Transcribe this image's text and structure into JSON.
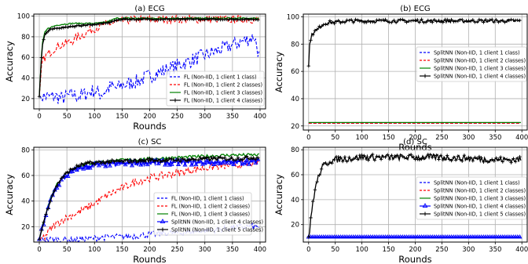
{
  "chart_data": [
    {
      "type": "line",
      "title": "(a) ECG",
      "xlabel": "Rounds",
      "ylabel": "Accuracy",
      "xlim": [
        -10,
        410
      ],
      "ylim": [
        10,
        102
      ],
      "xticks": [
        0,
        50,
        100,
        150,
        200,
        250,
        300,
        350,
        400
      ],
      "yticks": [
        20,
        40,
        60,
        80,
        100
      ],
      "grid": true,
      "legend_position": "lower-right",
      "series": [
        {
          "name": "FL (Non-IID, 1 client 1 class)",
          "color": "#0000ff",
          "dash": "dashed",
          "marker": "none",
          "x": [
            0,
            10,
            20,
            30,
            40,
            50,
            60,
            70,
            80,
            90,
            100,
            110,
            120,
            130,
            140,
            150,
            160,
            170,
            180,
            190,
            200,
            210,
            220,
            230,
            240,
            250,
            260,
            270,
            280,
            290,
            300,
            310,
            320,
            330,
            340,
            350,
            360,
            370,
            380,
            390,
            398
          ],
          "y": [
            22,
            22,
            22,
            22,
            20,
            22,
            24,
            22,
            24,
            26,
            28,
            24,
            27,
            32,
            30,
            33,
            34,
            36,
            37,
            40,
            42,
            44,
            46,
            48,
            50,
            52,
            54,
            56,
            58,
            60,
            62,
            64,
            66,
            68,
            70,
            72,
            74,
            76,
            78,
            80,
            62
          ]
        },
        {
          "name": "FL (Non-IID, 1 client 2 classes)",
          "color": "#ff0000",
          "dash": "dashed",
          "marker": "none",
          "x": [
            0,
            5,
            10,
            15,
            20,
            25,
            30,
            40,
            50,
            60,
            70,
            80,
            90,
            100,
            110,
            120,
            130,
            140,
            150,
            160,
            180,
            200,
            250,
            300,
            350,
            398
          ],
          "y": [
            22,
            55,
            60,
            63,
            65,
            67,
            70,
            72,
            74,
            76,
            80,
            82,
            86,
            88,
            90,
            92,
            93,
            94,
            95,
            96,
            97,
            97,
            97,
            97,
            97,
            97
          ]
        },
        {
          "name": "FL (Non-IID, 1 client 3 classes)",
          "color": "#008000",
          "dash": "solid",
          "marker": "none",
          "x": [
            0,
            5,
            10,
            15,
            20,
            30,
            40,
            60,
            80,
            100,
            120,
            140,
            150,
            200,
            250,
            300,
            350,
            398
          ],
          "y": [
            22,
            72,
            84,
            88,
            89,
            91,
            92,
            93,
            93,
            93,
            94,
            98,
            98,
            98,
            98,
            98,
            98,
            98
          ]
        },
        {
          "name": "FL (Non-IID, 1 client 4 classes)",
          "color": "#000000",
          "dash": "solid",
          "marker": "plus",
          "x": [
            0,
            5,
            10,
            15,
            20,
            30,
            40,
            60,
            80,
            100,
            120,
            140,
            150,
            200,
            250,
            300,
            350,
            398
          ],
          "y": [
            22,
            70,
            82,
            85,
            87,
            88,
            89,
            90,
            91,
            92,
            93,
            96,
            97,
            97,
            97,
            97,
            97,
            97
          ]
        }
      ]
    },
    {
      "type": "line",
      "title": "(b) ECG",
      "xlabel": "Rounds",
      "ylabel": "Accuracy",
      "xlim": [
        -10,
        410
      ],
      "ylim": [
        17,
        102
      ],
      "xticks": [
        0,
        50,
        100,
        150,
        200,
        250,
        300,
        350,
        400
      ],
      "yticks": [
        20,
        40,
        60,
        80,
        100
      ],
      "grid": true,
      "legend_position": "center-right",
      "series": [
        {
          "name": "SplitNN (Non-IID, 1 client 1 class)",
          "color": "#0000ff",
          "dash": "dashed",
          "marker": "none",
          "x": [
            0,
            398
          ],
          "y": [
            22,
            22
          ]
        },
        {
          "name": "SplitNN (Non-IID, 1 client 2 classes)",
          "color": "#ff0000",
          "dash": "dashed",
          "marker": "none",
          "x": [
            0,
            398
          ],
          "y": [
            22,
            22
          ]
        },
        {
          "name": "SplitNN (Non-IID, 1 client 3 classes)",
          "color": "#008000",
          "dash": "solid",
          "marker": "none",
          "x": [
            0,
            398
          ],
          "y": [
            22.5,
            22.5
          ]
        },
        {
          "name": "SplitNN (Non-IID, 1 client 4 classes)",
          "color": "#000000",
          "dash": "solid",
          "marker": "plus",
          "x": [
            0,
            2,
            5,
            10,
            15,
            20,
            25,
            30,
            40,
            50,
            75,
            100,
            150,
            200,
            250,
            300,
            350,
            398
          ],
          "y": [
            64,
            80,
            86,
            89,
            90,
            92,
            94,
            95,
            96,
            96,
            97,
            97,
            97,
            97,
            97,
            97,
            97,
            97
          ]
        }
      ]
    },
    {
      "type": "line",
      "title": "(c) SC",
      "xlabel": "Rounds",
      "ylabel": "Accuracy",
      "xlim": [
        -10,
        410
      ],
      "ylim": [
        8,
        82
      ],
      "xticks": [
        0,
        50,
        100,
        150,
        200,
        250,
        300,
        350,
        400
      ],
      "yticks": [
        20,
        40,
        60,
        80
      ],
      "grid": true,
      "legend_position": "lower-right",
      "series": [
        {
          "name": "FL (Non-IID, 1 client 1 class)",
          "color": "#0000ff",
          "dash": "dashed",
          "marker": "none",
          "x": [
            0,
            25,
            50,
            75,
            100,
            125,
            150,
            175,
            200,
            225,
            250,
            275,
            300,
            325,
            350,
            375,
            398
          ],
          "y": [
            10,
            10,
            10,
            10,
            11,
            12,
            12,
            13,
            14,
            15,
            15,
            16,
            17,
            18,
            19,
            20,
            20
          ]
        },
        {
          "name": "FL (Non-IID, 1 client 2 classes)",
          "color": "#ff0000",
          "dash": "dashed",
          "marker": "none",
          "x": [
            0,
            10,
            20,
            30,
            40,
            50,
            75,
            100,
            125,
            150,
            175,
            200,
            225,
            250,
            275,
            300,
            325,
            350,
            375,
            398
          ],
          "y": [
            10,
            12,
            18,
            22,
            25,
            27,
            32,
            38,
            45,
            50,
            55,
            58,
            60,
            62,
            64,
            66,
            67,
            68,
            69,
            70
          ]
        },
        {
          "name": "FL (Non-IID, 1 client 3 classes)",
          "color": "#008000",
          "dash": "solid",
          "marker": "none",
          "x": [
            0,
            10,
            20,
            30,
            40,
            50,
            60,
            75,
            100,
            150,
            200,
            250,
            300,
            350,
            398
          ],
          "y": [
            10,
            28,
            42,
            52,
            58,
            62,
            65,
            68,
            70,
            72,
            73,
            74,
            75,
            76,
            76
          ]
        },
        {
          "name": "SplitNN (Non-IID, 1 client 4 classes)",
          "color": "#0000ff",
          "dash": "solid",
          "marker": "triangle",
          "x": [
            0,
            10,
            20,
            30,
            40,
            50,
            60,
            75,
            100,
            150,
            200,
            250,
            300,
            350,
            398
          ],
          "y": [
            10,
            26,
            40,
            50,
            56,
            60,
            63,
            66,
            68,
            69,
            70,
            70,
            70,
            70,
            71
          ]
        },
        {
          "name": "SplitNN (Non-IID, 1 client 5 classes)",
          "color": "#000000",
          "dash": "solid",
          "marker": "plus",
          "x": [
            0,
            10,
            20,
            30,
            40,
            50,
            60,
            75,
            100,
            150,
            200,
            250,
            300,
            350,
            398
          ],
          "y": [
            10,
            27,
            41,
            51,
            58,
            62,
            65,
            68,
            70,
            71,
            72,
            72,
            73,
            73,
            74
          ]
        }
      ]
    },
    {
      "type": "line",
      "title": "(d) SC",
      "xlabel": "Rounds",
      "ylabel": "Accuracy",
      "xlim": [
        -10,
        410
      ],
      "ylim": [
        6,
        82
      ],
      "xticks": [
        0,
        50,
        100,
        150,
        200,
        250,
        300,
        350,
        400
      ],
      "yticks": [
        20,
        40,
        60,
        80
      ],
      "grid": true,
      "legend_position": "center-right",
      "series": [
        {
          "name": "SplitNN (Non-IID, 1 client 1 class)",
          "color": "#0000ff",
          "dash": "dashed",
          "marker": "none",
          "x": [
            0,
            398
          ],
          "y": [
            10,
            10
          ]
        },
        {
          "name": "SplitNN (Non-IID, 1 client 2 classes)",
          "color": "#ff0000",
          "dash": "dashed",
          "marker": "none",
          "x": [
            0,
            398
          ],
          "y": [
            10,
            10
          ]
        },
        {
          "name": "SplitNN (Non-IID, 1 client 3 classes)",
          "color": "#008000",
          "dash": "solid",
          "marker": "none",
          "x": [
            0,
            398
          ],
          "y": [
            10,
            10
          ]
        },
        {
          "name": "SplitNN (Non-IID, 1 client 4 classes)",
          "color": "#0000ff",
          "dash": "solid",
          "marker": "triangle",
          "x": [
            0,
            398
          ],
          "y": [
            10,
            10
          ]
        },
        {
          "name": "SplitNN (Non-IID, 1 client 5 classes)",
          "color": "#000000",
          "dash": "solid",
          "marker": "plus",
          "x": [
            0,
            2,
            5,
            8,
            12,
            16,
            20,
            25,
            30,
            40,
            50,
            75,
            100,
            150,
            200,
            250,
            300,
            350,
            398
          ],
          "y": [
            10,
            14,
            28,
            38,
            48,
            55,
            60,
            65,
            68,
            71,
            72,
            73,
            74,
            74,
            74,
            74,
            73,
            72,
            72
          ]
        }
      ]
    }
  ]
}
